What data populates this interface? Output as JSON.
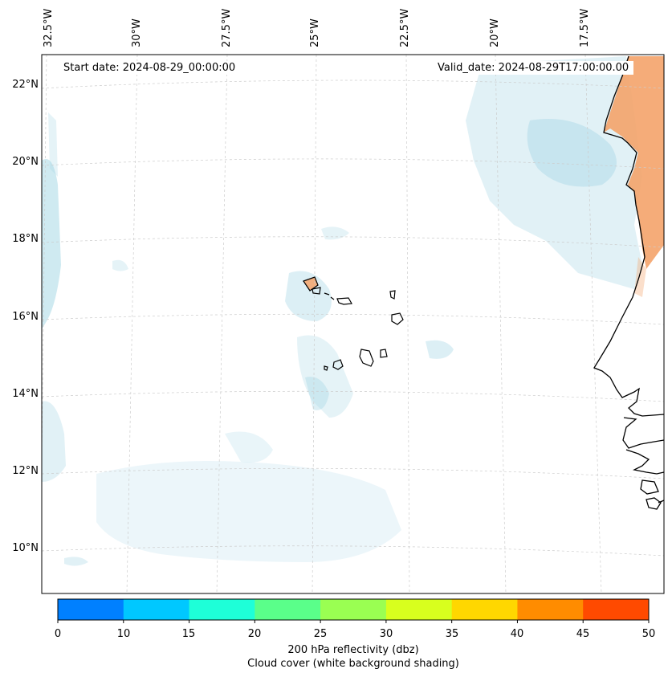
{
  "map": {
    "start_date": "Start date: 2024-08-29_00:00:00",
    "valid_date": "Valid_date: 2024-08-29T17:00:00.00",
    "lon_labels": [
      "32.5°W",
      "30°W",
      "27.5°W",
      "25°W",
      "22.5°W",
      "20°W",
      "17.5°W"
    ],
    "lat_labels": [
      "22°N",
      "20°N",
      "18°N",
      "16°N",
      "14°N",
      "12°N",
      "10°N"
    ]
  },
  "colorbar": {
    "ticks": [
      "0",
      "10",
      "15",
      "20",
      "25",
      "30",
      "35",
      "40",
      "45",
      "50"
    ],
    "colors": [
      "#0080ff",
      "#00c8ff",
      "#1effd8",
      "#5aff8a",
      "#9aff52",
      "#d8ff1e",
      "#ffd700",
      "#ff8c00",
      "#ff4a00"
    ],
    "label_line1": "200 hPa reflectivity (dbz)",
    "label_line2": "Cloud cover (white background shading)"
  },
  "colors": {
    "cloud": "#a8d8e6",
    "land_warm": "#f4a36a",
    "coast": "#000000",
    "grid": "#cccccc"
  }
}
